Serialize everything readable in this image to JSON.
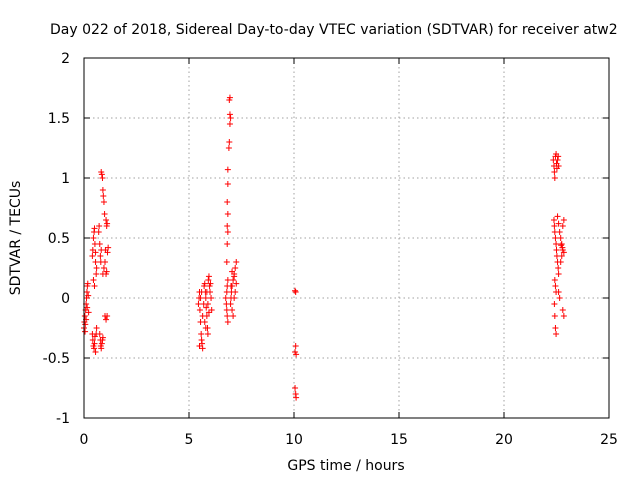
{
  "chart_data": {
    "type": "scatter",
    "title": "Day 022 of 2018, Sidereal Day-to-day VTEC variation (SDTVAR) for receiver atw2",
    "xlabel": "GPS time / hours",
    "ylabel": "SDTVAR / TECUs",
    "xlim": [
      0,
      25
    ],
    "ylim": [
      -1,
      2
    ],
    "xticks": [
      0,
      5,
      10,
      15,
      20,
      25
    ],
    "yticks": [
      -1,
      -0.5,
      0,
      0.5,
      1,
      1.5,
      2
    ],
    "xtick_labels": [
      "0",
      "5",
      "10",
      "15",
      "20",
      "25"
    ],
    "ytick_labels": [
      "-1",
      "-0.5",
      "0",
      "0.5",
      "1",
      "1.5",
      "2"
    ],
    "grid": true,
    "marker": "+",
    "series_color": "#ff0000",
    "series": [
      {
        "name": "SDTVAR",
        "points": [
          [
            0.0,
            -0.25
          ],
          [
            0.02,
            -0.2
          ],
          [
            0.04,
            -0.15
          ],
          [
            0.06,
            -0.22
          ],
          [
            0.08,
            -0.1
          ],
          [
            0.1,
            -0.05
          ],
          [
            0.12,
            0.0
          ],
          [
            0.14,
            0.05
          ],
          [
            0.16,
            0.1
          ],
          [
            0.18,
            0.12
          ],
          [
            0.05,
            -0.28
          ],
          [
            0.1,
            -0.18
          ],
          [
            0.15,
            -0.08
          ],
          [
            0.2,
            0.02
          ],
          [
            0.22,
            -0.12
          ],
          [
            0.4,
            0.35
          ],
          [
            0.42,
            0.4
          ],
          [
            0.45,
            0.5
          ],
          [
            0.48,
            0.55
          ],
          [
            0.5,
            0.58
          ],
          [
            0.52,
            0.45
          ],
          [
            0.55,
            0.3
          ],
          [
            0.58,
            0.2
          ],
          [
            0.6,
            0.25
          ],
          [
            0.45,
            0.15
          ],
          [
            0.5,
            0.1
          ],
          [
            0.55,
            0.38
          ],
          [
            0.4,
            -0.3
          ],
          [
            0.42,
            -0.35
          ],
          [
            0.45,
            -0.4
          ],
          [
            0.48,
            -0.42
          ],
          [
            0.5,
            -0.38
          ],
          [
            0.52,
            -0.32
          ],
          [
            0.55,
            -0.45
          ],
          [
            0.58,
            -0.3
          ],
          [
            0.6,
            -0.25
          ],
          [
            0.7,
            0.55
          ],
          [
            0.72,
            0.6
          ],
          [
            0.75,
            0.45
          ],
          [
            0.78,
            0.35
          ],
          [
            0.8,
            0.3
          ],
          [
            0.82,
            0.4
          ],
          [
            0.75,
            -0.3
          ],
          [
            0.78,
            -0.35
          ],
          [
            0.8,
            -0.4
          ],
          [
            0.82,
            -0.42
          ],
          [
            0.85,
            -0.38
          ],
          [
            0.88,
            -0.35
          ],
          [
            0.9,
            -0.33
          ],
          [
            0.82,
            1.05
          ],
          [
            0.85,
            1.03
          ],
          [
            0.88,
            1.0
          ],
          [
            0.9,
            0.9
          ],
          [
            0.92,
            0.85
          ],
          [
            0.95,
            0.8
          ],
          [
            0.98,
            0.7
          ],
          [
            0.9,
            0.2
          ],
          [
            0.95,
            0.25
          ],
          [
            1.0,
            0.3
          ],
          [
            1.02,
            0.4
          ],
          [
            1.05,
            0.65
          ],
          [
            1.08,
            0.6
          ],
          [
            1.1,
            0.62
          ],
          [
            1.05,
            0.2
          ],
          [
            1.08,
            0.22
          ],
          [
            1.0,
            -0.15
          ],
          [
            1.05,
            -0.18
          ],
          [
            1.1,
            -0.15
          ],
          [
            1.12,
            0.38
          ],
          [
            1.15,
            0.42
          ],
          [
            5.45,
            -0.05
          ],
          [
            5.48,
            0.0
          ],
          [
            5.5,
            0.05
          ],
          [
            5.52,
            -0.1
          ],
          [
            5.55,
            -0.2
          ],
          [
            5.58,
            -0.3
          ],
          [
            5.6,
            -0.35
          ],
          [
            5.62,
            -0.38
          ],
          [
            5.65,
            -0.42
          ],
          [
            5.5,
            -0.4
          ],
          [
            5.55,
            0.0
          ],
          [
            5.6,
            0.05
          ],
          [
            5.65,
            -0.15
          ],
          [
            5.7,
            -0.05
          ],
          [
            5.72,
            0.1
          ],
          [
            5.75,
            0.12
          ],
          [
            5.78,
            0.05
          ],
          [
            5.8,
            0.0
          ],
          [
            5.82,
            -0.08
          ],
          [
            5.85,
            -0.15
          ],
          [
            5.88,
            -0.25
          ],
          [
            5.9,
            -0.3
          ],
          [
            5.92,
            0.15
          ],
          [
            5.95,
            0.18
          ],
          [
            5.98,
            0.1
          ],
          [
            6.0,
            0.05
          ],
          [
            6.02,
            0.12
          ],
          [
            6.05,
            0.0
          ],
          [
            6.08,
            -0.1
          ],
          [
            5.75,
            -0.2
          ],
          [
            5.8,
            -0.25
          ],
          [
            5.85,
            0.05
          ],
          [
            5.9,
            -0.05
          ],
          [
            5.95,
            -0.12
          ],
          [
            6.75,
            0.0
          ],
          [
            6.78,
            -0.05
          ],
          [
            6.8,
            -0.1
          ],
          [
            6.82,
            -0.15
          ],
          [
            6.85,
            -0.2
          ],
          [
            6.8,
            0.05
          ],
          [
            6.82,
            0.1
          ],
          [
            6.85,
            0.15
          ],
          [
            6.8,
            0.3
          ],
          [
            6.82,
            0.45
          ],
          [
            6.85,
            0.55
          ],
          [
            6.82,
            0.6
          ],
          [
            6.85,
            0.7
          ],
          [
            6.82,
            0.8
          ],
          [
            6.85,
            0.95
          ],
          [
            6.85,
            1.07
          ],
          [
            6.9,
            1.25
          ],
          [
            6.92,
            1.3
          ],
          [
            6.95,
            1.45
          ],
          [
            6.98,
            1.5
          ],
          [
            6.95,
            1.53
          ],
          [
            6.92,
            1.65
          ],
          [
            6.95,
            1.67
          ],
          [
            6.98,
            -0.05
          ],
          [
            7.0,
            0.0
          ],
          [
            7.02,
            0.05
          ],
          [
            7.05,
            0.1
          ],
          [
            7.1,
            0.15
          ],
          [
            7.15,
            0.2
          ],
          [
            7.2,
            0.25
          ],
          [
            7.25,
            0.3
          ],
          [
            7.0,
            0.1
          ],
          [
            7.05,
            -0.1
          ],
          [
            7.1,
            -0.15
          ],
          [
            7.15,
            0.0
          ],
          [
            7.2,
            0.05
          ],
          [
            7.25,
            0.12
          ],
          [
            7.05,
            0.22
          ],
          [
            7.15,
            0.18
          ],
          [
            10.05,
            0.06
          ],
          [
            10.08,
            0.05
          ],
          [
            10.05,
            -0.45
          ],
          [
            10.08,
            -0.4
          ],
          [
            10.1,
            -0.47
          ],
          [
            10.05,
            -0.75
          ],
          [
            10.08,
            -0.8
          ],
          [
            10.1,
            -0.83
          ],
          [
            22.35,
            1.15
          ],
          [
            22.38,
            1.1
          ],
          [
            22.4,
            1.05
          ],
          [
            22.42,
            1.0
          ],
          [
            22.45,
            1.18
          ],
          [
            22.48,
            1.2
          ],
          [
            22.5,
            1.12
          ],
          [
            22.52,
            1.08
          ],
          [
            22.55,
            1.15
          ],
          [
            22.58,
            1.18
          ],
          [
            22.6,
            1.1
          ],
          [
            22.38,
            0.65
          ],
          [
            22.4,
            0.6
          ],
          [
            22.42,
            0.55
          ],
          [
            22.45,
            0.5
          ],
          [
            22.48,
            0.45
          ],
          [
            22.5,
            0.4
          ],
          [
            22.52,
            0.35
          ],
          [
            22.55,
            0.3
          ],
          [
            22.58,
            0.25
          ],
          [
            22.6,
            0.2
          ],
          [
            22.42,
            0.15
          ],
          [
            22.45,
            0.1
          ],
          [
            22.48,
            0.05
          ],
          [
            22.4,
            -0.05
          ],
          [
            22.42,
            -0.15
          ],
          [
            22.45,
            -0.25
          ],
          [
            22.48,
            -0.3
          ],
          [
            22.55,
            0.68
          ],
          [
            22.6,
            0.62
          ],
          [
            22.65,
            0.55
          ],
          [
            22.7,
            0.5
          ],
          [
            22.75,
            0.45
          ],
          [
            22.8,
            0.4
          ],
          [
            22.85,
            0.38
          ],
          [
            22.6,
            0.05
          ],
          [
            22.65,
            0.0
          ],
          [
            22.7,
            0.3
          ],
          [
            22.75,
            0.35
          ],
          [
            22.8,
            0.6
          ],
          [
            22.85,
            0.65
          ],
          [
            22.8,
            -0.1
          ],
          [
            22.85,
            -0.15
          ],
          [
            22.72,
            0.44
          ],
          [
            22.78,
            0.42
          ]
        ]
      }
    ]
  }
}
